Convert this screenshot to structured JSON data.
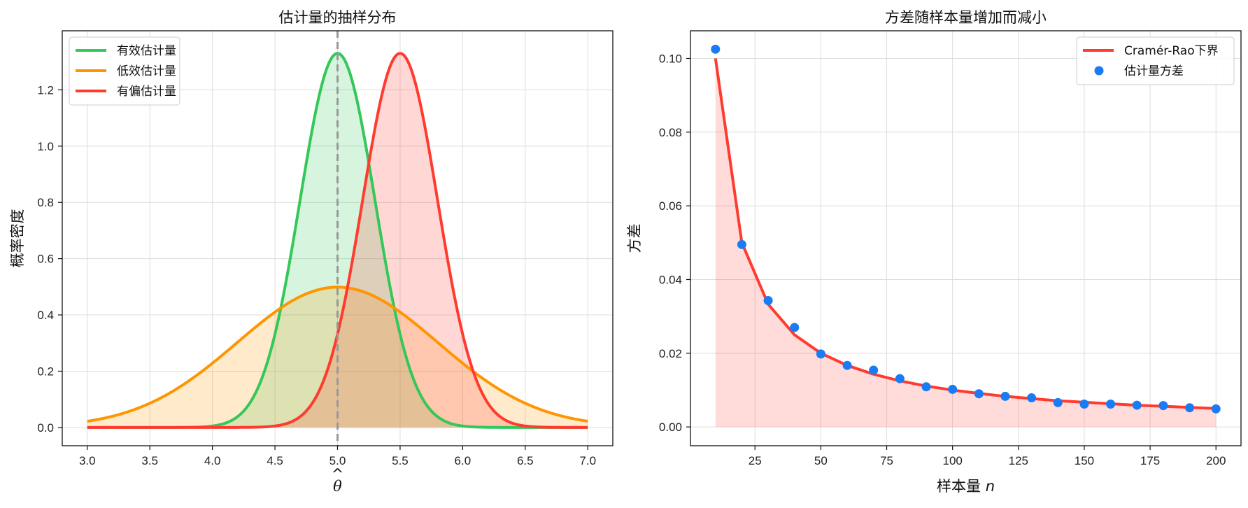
{
  "chart_data": [
    {
      "type": "line",
      "title": "估计量的抽样分布",
      "xlabel": "θ̂",
      "ylabel": "概率密度",
      "xlim": [
        2.8,
        7.2
      ],
      "ylim": [
        -0.065,
        1.41
      ],
      "x_ticks": [
        "3.0",
        "3.5",
        "4.0",
        "4.5",
        "5.0",
        "5.5",
        "6.0",
        "6.5",
        "7.0"
      ],
      "y_ticks": [
        "0.0",
        "0.2",
        "0.4",
        "0.6",
        "0.8",
        "1.0",
        "1.2"
      ],
      "grid": true,
      "legend_position": "upper-left",
      "true_value_line": {
        "x": 5.0,
        "color": "#999999",
        "style": "dashed"
      },
      "series": [
        {
          "name": "有效估计量",
          "color": "#34c759",
          "distribution": "normal",
          "mean": 5.0,
          "sd": 0.3,
          "x_range": [
            3.0,
            7.0
          ],
          "fill": true
        },
        {
          "name": "低效估计量",
          "color": "#ff9500",
          "distribution": "normal",
          "mean": 5.0,
          "sd": 0.8,
          "x_range": [
            3.0,
            7.0
          ],
          "fill": true
        },
        {
          "name": "有偏估计量",
          "color": "#ff3b30",
          "distribution": "normal",
          "mean": 5.5,
          "sd": 0.3,
          "x_range": [
            3.0,
            7.0
          ],
          "fill": true
        }
      ]
    },
    {
      "type": "line",
      "title": "方差随样本量增加而减小",
      "xlabel": "样本量 n",
      "ylabel": "方差",
      "xlim": [
        0.5,
        209.5
      ],
      "ylim": [
        -0.0051,
        0.1075
      ],
      "x_ticks": [
        "25",
        "50",
        "75",
        "100",
        "125",
        "150",
        "175",
        "200"
      ],
      "y_ticks": [
        "0.00",
        "0.02",
        "0.04",
        "0.06",
        "0.08",
        "0.10"
      ],
      "grid": true,
      "legend_position": "upper-right",
      "series": [
        {
          "name": "Cramér-Rao下界",
          "kind": "line",
          "color": "#ff3b30",
          "fill": true,
          "x": [
            10,
            20,
            30,
            40,
            50,
            60,
            70,
            80,
            90,
            100,
            110,
            120,
            130,
            140,
            150,
            160,
            170,
            180,
            190,
            200
          ],
          "y": [
            0.1,
            0.05,
            0.0333,
            0.025,
            0.02,
            0.0167,
            0.0143,
            0.0125,
            0.0111,
            0.01,
            0.0091,
            0.0083,
            0.0077,
            0.0071,
            0.0067,
            0.0063,
            0.0059,
            0.0056,
            0.0053,
            0.005
          ]
        },
        {
          "name": "估计量方差",
          "kind": "scatter",
          "color": "#1a7cf5",
          "x": [
            10,
            20,
            30,
            40,
            50,
            60,
            70,
            80,
            90,
            100,
            110,
            120,
            130,
            140,
            150,
            160,
            170,
            180,
            190,
            200
          ],
          "y": [
            0.1025,
            0.0495,
            0.0343,
            0.027,
            0.0198,
            0.0167,
            0.0154,
            0.0131,
            0.0109,
            0.0102,
            0.009,
            0.0083,
            0.0079,
            0.0066,
            0.0062,
            0.0062,
            0.0059,
            0.0058,
            0.0052,
            0.0049
          ]
        }
      ]
    }
  ]
}
